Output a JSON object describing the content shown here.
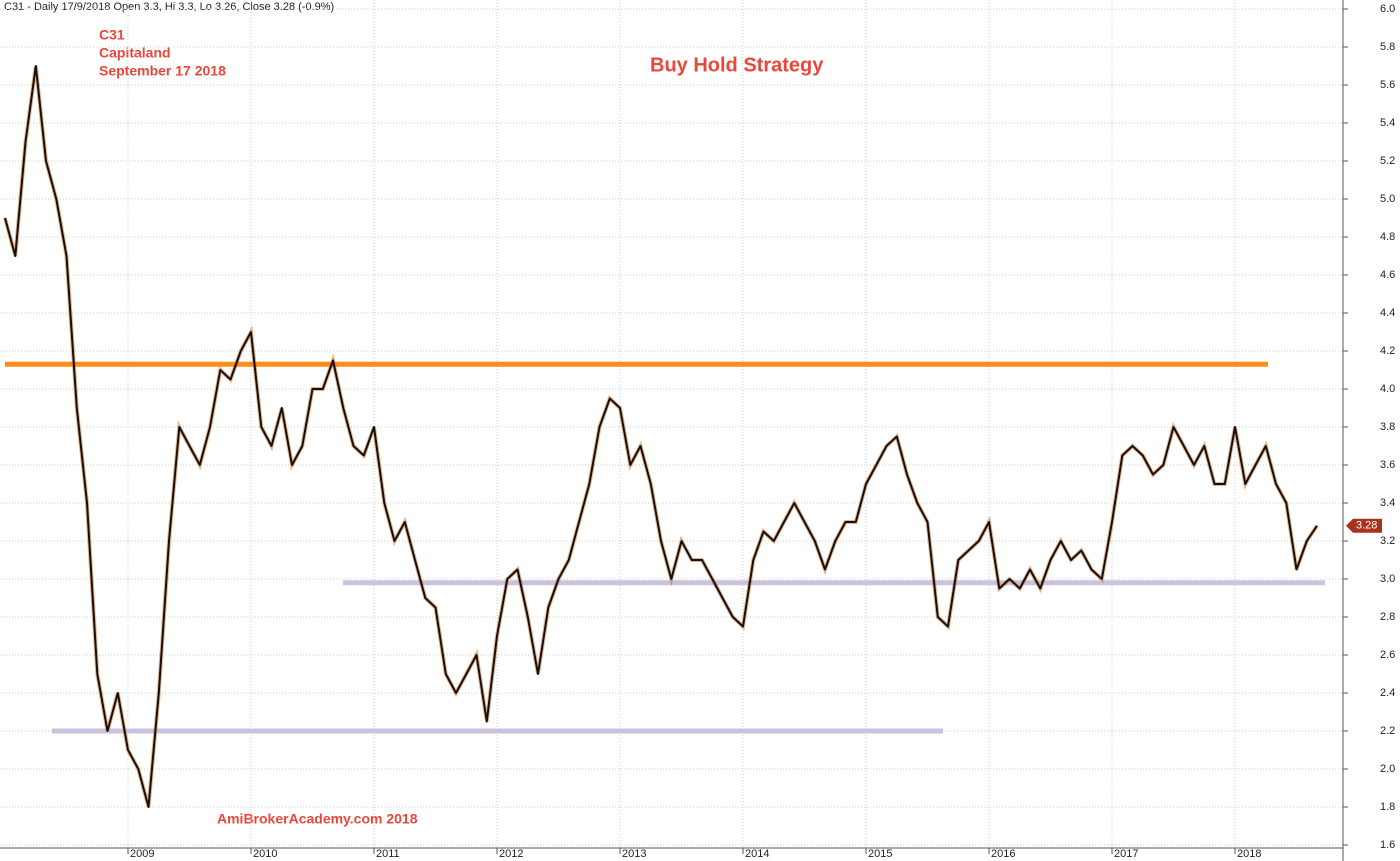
{
  "chart_data": {
    "type": "line",
    "header": "C31 - Daily 17/9/2018 Open 3.3, Hi 3.3, Lo 3.26, Close 3.28 (-0.9%)",
    "title": "Buy Hold Strategy",
    "annotations": [
      "C31",
      "Capitaland",
      "September 17 2018"
    ],
    "footer": "AmiBrokerAcademy.com  2018",
    "categories": [
      null,
      null,
      null,
      null,
      null,
      null,
      null,
      null,
      null,
      null,
      null,
      null,
      "2009",
      null,
      null,
      null,
      null,
      null,
      null,
      null,
      null,
      null,
      null,
      null,
      "2010",
      null,
      null,
      null,
      null,
      null,
      null,
      null,
      null,
      null,
      null,
      null,
      "2011",
      null,
      null,
      null,
      null,
      null,
      null,
      null,
      null,
      null,
      null,
      null,
      "2012",
      null,
      null,
      null,
      null,
      null,
      null,
      null,
      null,
      null,
      null,
      null,
      "2013",
      null,
      null,
      null,
      null,
      null,
      null,
      null,
      null,
      null,
      null,
      null,
      "2014",
      null,
      null,
      null,
      null,
      null,
      null,
      null,
      null,
      null,
      null,
      null,
      "2015",
      null,
      null,
      null,
      null,
      null,
      null,
      null,
      null,
      null,
      null,
      null,
      "2016",
      null,
      null,
      null,
      null,
      null,
      null,
      null,
      null,
      null,
      null,
      null,
      "2017",
      null,
      null,
      null,
      null,
      null,
      null,
      null,
      null,
      null,
      null,
      null,
      "2018",
      null,
      null,
      null,
      null,
      null,
      null,
      null,
      null
    ],
    "series": [
      {
        "name": "C31",
        "color": "#111111",
        "values": [
          4.9,
          4.7,
          5.3,
          5.7,
          5.2,
          5.0,
          4.7,
          3.9,
          3.4,
          2.5,
          2.2,
          2.4,
          2.1,
          2.0,
          1.8,
          2.4,
          3.2,
          3.8,
          3.7,
          3.6,
          3.8,
          4.1,
          4.05,
          4.2,
          4.3,
          3.8,
          3.7,
          3.9,
          3.6,
          3.7,
          4.0,
          4.0,
          4.15,
          3.9,
          3.7,
          3.65,
          3.8,
          3.4,
          3.2,
          3.3,
          3.1,
          2.9,
          2.85,
          2.5,
          2.4,
          2.5,
          2.6,
          2.25,
          2.7,
          3.0,
          3.05,
          2.8,
          2.5,
          2.85,
          3.0,
          3.1,
          3.3,
          3.5,
          3.8,
          3.95,
          3.9,
          3.6,
          3.7,
          3.5,
          3.2,
          3.0,
          3.2,
          3.1,
          3.1,
          3.0,
          2.9,
          2.8,
          2.75,
          3.1,
          3.25,
          3.2,
          3.3,
          3.4,
          3.3,
          3.2,
          3.05,
          3.2,
          3.3,
          3.3,
          3.5,
          3.6,
          3.7,
          3.75,
          3.55,
          3.4,
          3.3,
          2.8,
          2.75,
          3.1,
          3.15,
          3.2,
          3.3,
          2.95,
          3.0,
          2.95,
          3.05,
          2.95,
          3.1,
          3.2,
          3.1,
          3.15,
          3.05,
          3.0,
          3.3,
          3.65,
          3.7,
          3.65,
          3.55,
          3.6,
          3.8,
          3.7,
          3.6,
          3.7,
          3.5,
          3.5,
          3.8,
          3.5,
          3.6,
          3.7,
          3.5,
          3.4,
          3.05,
          3.2,
          3.28
        ]
      }
    ],
    "levels": [
      {
        "value": 4.13,
        "color": "#ff8c1a"
      },
      {
        "value": 2.98,
        "color": "#cbc2dd"
      },
      {
        "value": 2.2,
        "color": "#cbc2dd"
      }
    ],
    "ylim": [
      1.6,
      6.0
    ],
    "yticks": [
      1.6,
      1.8,
      {
        "value": 2,
        "label": "2.0"
      },
      2.2,
      2.4,
      2.6,
      2.8,
      {
        "value": 3,
        "label": "3.0"
      },
      3.2,
      3.4,
      3.6,
      3.8,
      {
        "value": 4,
        "label": "4.0"
      },
      4.2,
      4.4,
      4.6,
      4.8,
      {
        "value": 5,
        "label": "5.0"
      },
      5.2,
      5.4,
      5.6,
      5.8,
      {
        "value": 6,
        "label": "6.0"
      }
    ],
    "grid": true,
    "last_price_color": "#a8321e"
  }
}
